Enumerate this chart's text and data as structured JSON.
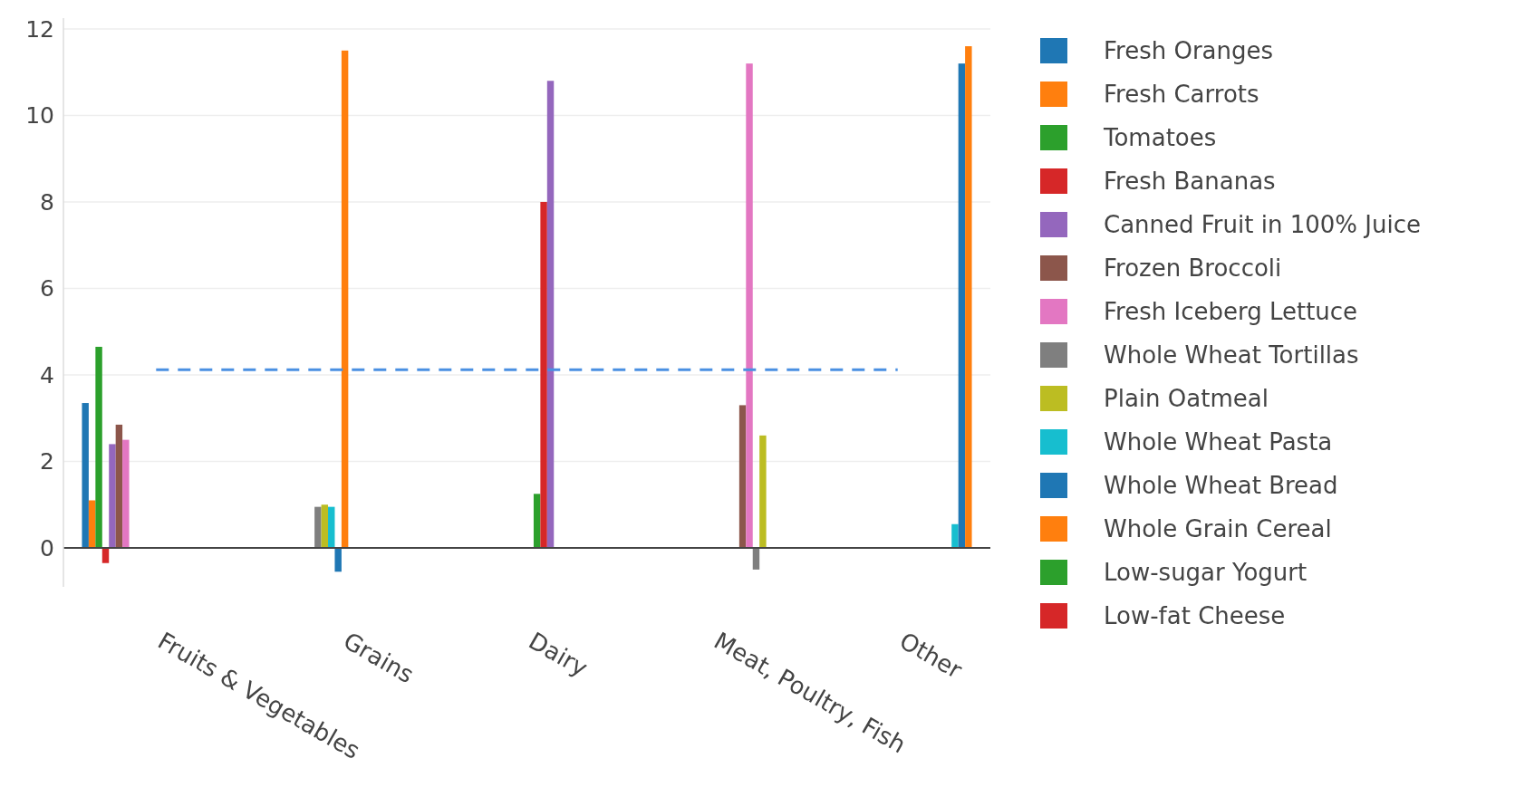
{
  "chart_data": {
    "type": "bar",
    "categories": [
      "Fruits & Vegetables",
      "Grains",
      "Dairy",
      "Meat, Poultry, Fish",
      "Other"
    ],
    "ylim": [
      -0.9,
      12.25
    ],
    "yticks": [
      0,
      2,
      4,
      6,
      8,
      10,
      12
    ],
    "grid": "y",
    "legend": "right",
    "series": [
      {
        "name": "Fresh Oranges",
        "color": "#1f77b4",
        "values": [
          3.35,
          null,
          null,
          null,
          null
        ]
      },
      {
        "name": "Fresh Carrots",
        "color": "#ff7f0e",
        "values": [
          1.1,
          null,
          null,
          null,
          null
        ]
      },
      {
        "name": "Tomatoes",
        "color": "#2ca02c",
        "values": [
          4.65,
          null,
          null,
          null,
          null
        ]
      },
      {
        "name": "Fresh Bananas",
        "color": "#d62728",
        "values": [
          -0.35,
          null,
          null,
          null,
          null
        ]
      },
      {
        "name": "Canned Fruit in 100% Juice",
        "color": "#9467bd",
        "values": [
          2.4,
          null,
          null,
          null,
          null
        ]
      },
      {
        "name": "Frozen Broccoli",
        "color": "#8c564b",
        "values": [
          2.85,
          null,
          null,
          null,
          null
        ]
      },
      {
        "name": "Fresh Iceberg Lettuce",
        "color": "#e377c2",
        "values": [
          2.5,
          null,
          null,
          null,
          null
        ]
      },
      {
        "name": "Whole Wheat Tortillas",
        "color": "#7f7f7f",
        "values": [
          null,
          0.95,
          null,
          null,
          null
        ]
      },
      {
        "name": "Plain Oatmeal",
        "color": "#bcbd22",
        "values": [
          null,
          1.0,
          null,
          null,
          null
        ]
      },
      {
        "name": "Whole Wheat Pasta",
        "color": "#17becf",
        "values": [
          null,
          0.95,
          null,
          null,
          null
        ]
      },
      {
        "name": "Whole Wheat Bread",
        "color": "#1f77b4",
        "values": [
          null,
          -0.55,
          null,
          null,
          null
        ]
      },
      {
        "name": "Whole Grain Cereal",
        "color": "#ff7f0e",
        "values": [
          null,
          11.5,
          null,
          null,
          null
        ]
      },
      {
        "name": "Low-sugar Yogurt",
        "color": "#2ca02c",
        "values": [
          null,
          null,
          1.25,
          null,
          null
        ]
      },
      {
        "name": "Low-fat Cheese",
        "color": "#d62728",
        "values": [
          null,
          null,
          8.0,
          null,
          null
        ]
      },
      {
        "color": "#9467bd",
        "values": [
          null,
          null,
          10.8,
          null,
          null
        ]
      },
      {
        "color": "#8c564b",
        "values": [
          null,
          null,
          null,
          3.3,
          null
        ]
      },
      {
        "color": "#e377c2",
        "values": [
          null,
          null,
          null,
          11.2,
          null
        ]
      },
      {
        "color": "#7f7f7f",
        "values": [
          null,
          null,
          null,
          -0.5,
          null
        ]
      },
      {
        "color": "#bcbd22",
        "values": [
          null,
          null,
          null,
          2.6,
          null
        ]
      },
      {
        "color": "#17becf",
        "values": [
          null,
          null,
          null,
          null,
          0.55
        ]
      },
      {
        "color": "#1f77b4",
        "values": [
          null,
          null,
          null,
          null,
          11.2
        ]
      },
      {
        "color": "#ff7f0e",
        "values": [
          null,
          null,
          null,
          null,
          11.6
        ]
      },
      {
        "type": "line",
        "color": "#4a90e2",
        "line_style": "dashed",
        "marker": "none",
        "values": [
          4.12,
          4.12,
          4.12,
          4.12,
          4.12
        ]
      }
    ]
  }
}
